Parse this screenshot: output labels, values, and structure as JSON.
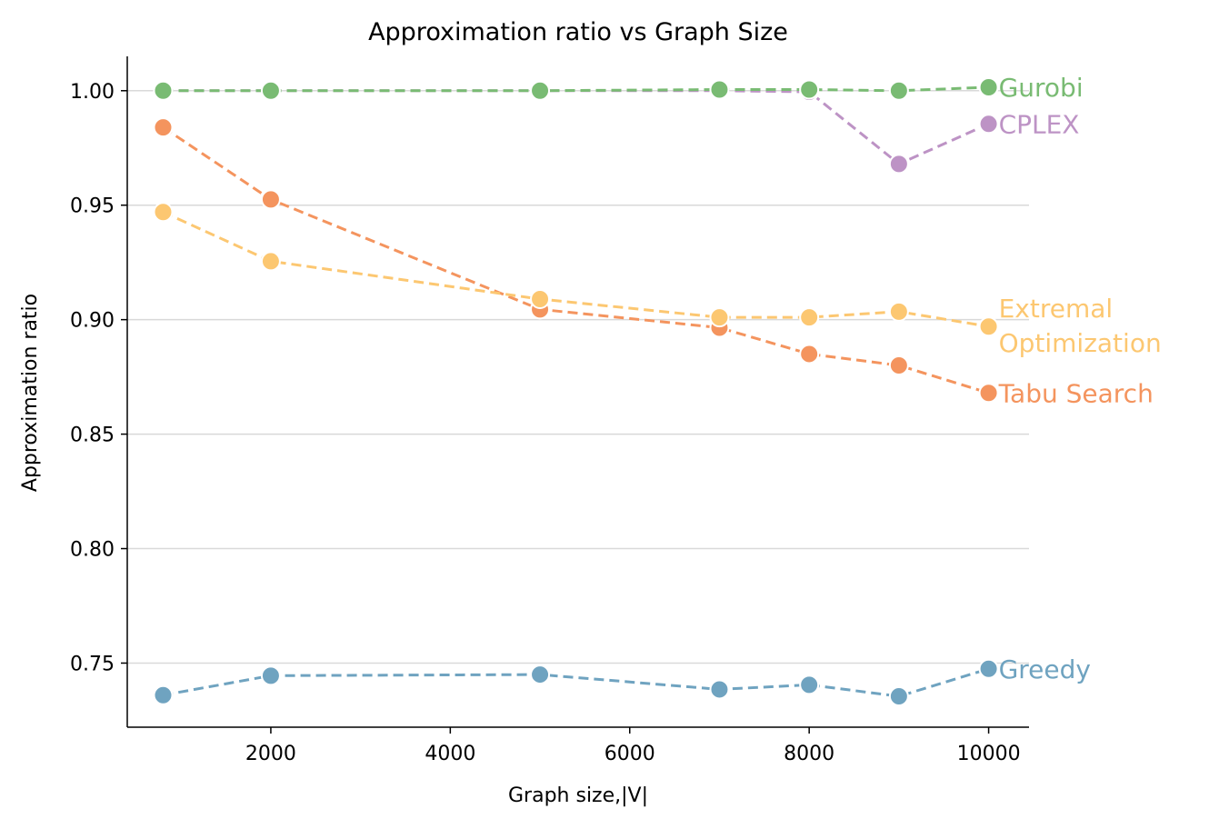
{
  "chart_data": {
    "type": "line",
    "title": "Approximation ratio vs Graph Size",
    "xlabel": "Graph size,|V|",
    "ylabel": "Approximation ratio",
    "xlim": [
      400,
      10450
    ],
    "ylim": [
      0.722,
      1.015
    ],
    "xticks": [
      2000,
      4000,
      6000,
      8000,
      10000
    ],
    "yticks": [
      0.75,
      0.8,
      0.85,
      0.9,
      0.95,
      1.0
    ],
    "ytick_labels": [
      "0.75",
      "0.80",
      "0.85",
      "0.90",
      "0.95",
      "1.00"
    ],
    "grid": "horizontal",
    "legend": "none (series labeled at line ends)",
    "x": [
      800,
      2000,
      5000,
      7000,
      8000,
      9000,
      10000
    ],
    "series": [
      {
        "name": "Greedy",
        "color": "#6fa3c0",
        "values": [
          0.736,
          0.7445,
          0.745,
          0.7385,
          0.7405,
          0.7355,
          0.7475
        ]
      },
      {
        "name": "Tabu Search",
        "color": "#f4945e",
        "values": [
          0.984,
          0.9525,
          0.9045,
          0.8965,
          0.885,
          0.88,
          0.868
        ]
      },
      {
        "name": "Extremal Optimization",
        "label_lines": [
          "Extremal",
          "Optimization"
        ],
        "color": "#fcc771",
        "values": [
          0.947,
          0.9255,
          0.909,
          0.901,
          0.901,
          0.9035,
          0.897
        ]
      },
      {
        "name": "CPLEX",
        "color": "#bd93c5",
        "values": [
          1.0,
          1.0,
          1.0,
          1.0,
          0.9995,
          0.968,
          0.9855
        ]
      },
      {
        "name": "Gurobi",
        "color": "#79bb73",
        "values": [
          1.0,
          1.0,
          1.0,
          1.0005,
          1.0005,
          1.0,
          1.0015
        ]
      }
    ]
  }
}
